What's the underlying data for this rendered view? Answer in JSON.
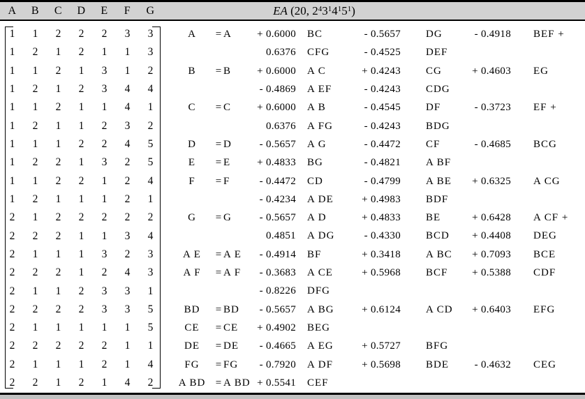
{
  "colors": {
    "header_bg": "#d2d2d2",
    "rule": "#000000",
    "bottom_band": "#c2c2c2",
    "text": "#000000"
  },
  "header": {
    "columns": [
      "A",
      "B",
      "C",
      "D",
      "E",
      "F",
      "G"
    ],
    "title": "EA (20, 2´3¹4¹5¹)",
    "title_segments": [
      {
        "text": "EA",
        "italic": true
      },
      {
        "text": " (20, 2"
      },
      {
        "text": "4",
        "sup": true
      },
      {
        "text": "3"
      },
      {
        "text": "1",
        "sup": true
      },
      {
        "text": "4"
      },
      {
        "text": "1",
        "sup": true
      },
      {
        "text": "5"
      },
      {
        "text": "1",
        "sup": true
      },
      {
        "text": ")"
      }
    ]
  },
  "design_table": {
    "rows": [
      [
        1,
        1,
        2,
        2,
        2,
        3,
        3
      ],
      [
        1,
        2,
        1,
        2,
        1,
        1,
        3
      ],
      [
        1,
        1,
        2,
        1,
        3,
        1,
        2
      ],
      [
        1,
        2,
        1,
        2,
        3,
        4,
        4
      ],
      [
        1,
        1,
        2,
        1,
        1,
        4,
        1
      ],
      [
        1,
        2,
        1,
        1,
        2,
        3,
        2
      ],
      [
        1,
        1,
        1,
        2,
        2,
        4,
        5
      ],
      [
        1,
        2,
        2,
        1,
        3,
        2,
        5
      ],
      [
        1,
        1,
        2,
        2,
        1,
        2,
        4
      ],
      [
        1,
        2,
        1,
        1,
        1,
        2,
        1
      ],
      [
        2,
        1,
        2,
        2,
        2,
        2,
        2
      ],
      [
        2,
        2,
        2,
        1,
        1,
        3,
        4
      ],
      [
        2,
        1,
        1,
        1,
        3,
        2,
        3
      ],
      [
        2,
        2,
        2,
        1,
        2,
        4,
        3
      ],
      [
        2,
        1,
        1,
        2,
        3,
        3,
        1
      ],
      [
        2,
        2,
        2,
        2,
        3,
        3,
        5
      ],
      [
        2,
        1,
        1,
        1,
        1,
        1,
        5
      ],
      [
        2,
        2,
        2,
        2,
        2,
        1,
        1
      ],
      [
        2,
        1,
        1,
        1,
        2,
        1,
        4
      ],
      [
        2,
        2,
        1,
        2,
        1,
        4,
        2
      ]
    ]
  },
  "alias_relations": {
    "lines": [
      [
        "A",
        "=",
        "A",
        "+ 0.6000",
        "BC",
        "- 0.5657",
        "DG",
        "- 0.4918",
        "BEF +"
      ],
      [
        "",
        "",
        "",
        "0.6376",
        "CFG",
        "- 0.4525",
        "DEF",
        "",
        ""
      ],
      [
        "B",
        "=",
        "B",
        "+ 0.6000",
        "A C",
        "+ 0.4243",
        "CG",
        "+ 0.4603",
        "EG"
      ],
      [
        "",
        "",
        "",
        "- 0.4869",
        "A EF",
        "- 0.4243",
        "CDG",
        "",
        ""
      ],
      [
        "C",
        "=",
        "C",
        "+ 0.6000",
        "A B",
        "- 0.4545",
        "DF",
        "- 0.3723",
        "EF +"
      ],
      [
        "",
        "",
        "",
        "0.6376",
        "A FG",
        "- 0.4243",
        "BDG",
        "",
        ""
      ],
      [
        "D",
        "=",
        "D",
        "- 0.5657",
        "A G",
        "- 0.4472",
        "CF",
        "- 0.4685",
        "BCG"
      ],
      [
        "E",
        "=",
        "E",
        "+ 0.4833",
        "BG",
        "- 0.4821",
        "A BF",
        "",
        ""
      ],
      [
        "F",
        "=",
        "F",
        "- 0.4472",
        "CD",
        "- 0.4799",
        "A BE",
        "+ 0.6325",
        "A CG"
      ],
      [
        "",
        "",
        "",
        "- 0.4234",
        "A DE",
        "+ 0.4983",
        "BDF",
        "",
        ""
      ],
      [
        "G",
        "=",
        "G",
        "- 0.5657",
        "A D",
        "+ 0.4833",
        "BE",
        "+ 0.6428",
        "A CF +"
      ],
      [
        "",
        "",
        "",
        "0.4851",
        "A DG",
        "- 0.4330",
        "BCD",
        "+ 0.4408",
        "DEG"
      ],
      [
        "A E",
        "=",
        "A E",
        "- 0.4914",
        "BF",
        "+ 0.3418",
        "A BC",
        "+ 0.7093",
        "BCE"
      ],
      [
        "A F",
        "=",
        "A F",
        "- 0.3683",
        "A CE",
        "+ 0.5968",
        "BCF",
        "+ 0.5388",
        "CDF"
      ],
      [
        "",
        "",
        "",
        "- 0.8226",
        "DFG",
        "",
        "",
        "",
        ""
      ],
      [
        "BD",
        "=",
        "BD",
        "- 0.5657",
        "A BG",
        "+ 0.6124",
        "A CD",
        "+ 0.6403",
        "EFG"
      ],
      [
        "CE",
        "=",
        "CE",
        "+ 0.4902",
        "BEG",
        "",
        "",
        "",
        ""
      ],
      [
        "DE",
        "=",
        "DE",
        "- 0.4665",
        "A EG",
        "+ 0.5727",
        "BFG",
        "",
        ""
      ],
      [
        "FG",
        "=",
        "FG",
        "- 0.7920",
        "A DF",
        "+ 0.5698",
        "BDE",
        "- 0.4632",
        "CEG"
      ],
      [
        "A BD",
        "=",
        "A BD",
        "+ 0.5541",
        "CEF",
        "",
        "",
        "",
        ""
      ]
    ]
  }
}
